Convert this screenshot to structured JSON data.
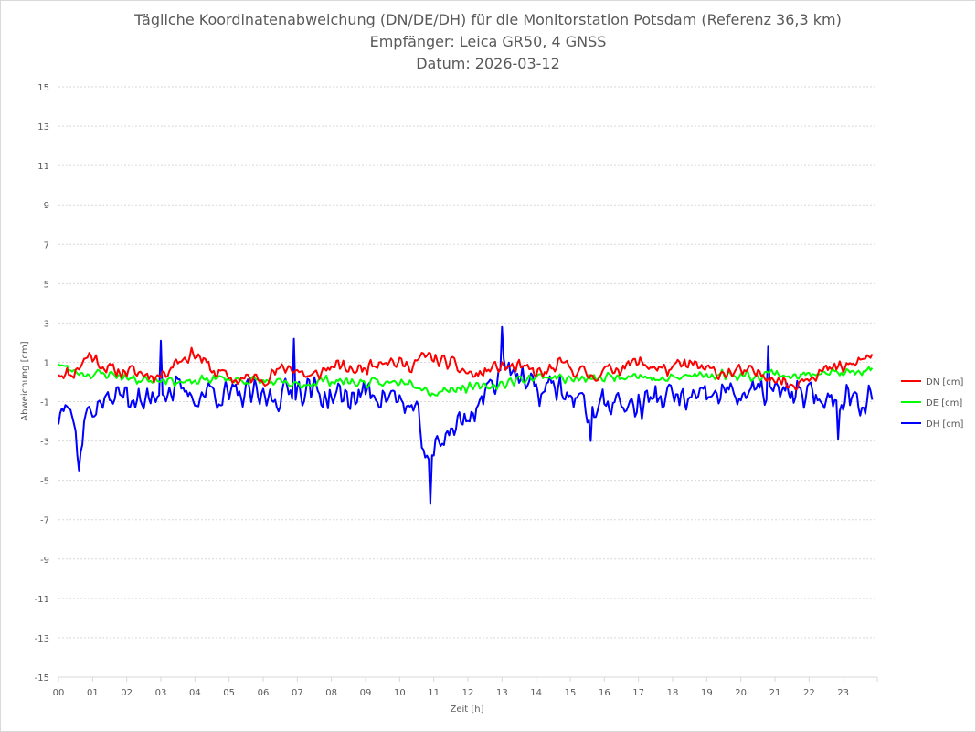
{
  "chart_data": {
    "type": "line",
    "title": [
      "Tägliche Koordinatenabweichung (DN/DE/DH) für die Monitorstation Potsdam (Referenz 36,3 km)",
      "Empfänger: Leica GR50, 4 GNSS",
      "Datum: 2026-03-12"
    ],
    "xlabel": "Zeit [h]",
    "ylabel": "Abweichung [cm]",
    "xlim": [
      0,
      24
    ],
    "ylim": [
      -15,
      15
    ],
    "x_ticks": [
      "00",
      "01",
      "02",
      "03",
      "04",
      "05",
      "06",
      "07",
      "08",
      "09",
      "10",
      "11",
      "12",
      "13",
      "14",
      "15",
      "16",
      "17",
      "18",
      "19",
      "20",
      "21",
      "22",
      "23"
    ],
    "y_ticks": [
      "15",
      "13",
      "11",
      "9",
      "7",
      "5",
      "3",
      "1",
      "-1",
      "-3",
      "-5",
      "-7",
      "-9",
      "-11",
      "-13",
      "-15"
    ],
    "y_tick_values": [
      15,
      13,
      11,
      9,
      7,
      5,
      3,
      1,
      -1,
      -3,
      -5,
      -7,
      -9,
      -11,
      -13,
      -15
    ],
    "grid": true,
    "legend_position": "right",
    "sampling_interval_h": 0.05,
    "series": [
      {
        "name": "DN [cm]",
        "color": "#ff0000",
        "keypoints": [
          [
            0,
            0.5
          ],
          [
            0.4,
            0.4
          ],
          [
            0.9,
            1.4
          ],
          [
            1.5,
            0.6
          ],
          [
            2.2,
            0.5
          ],
          [
            3.0,
            0.3
          ],
          [
            3.4,
            1.0
          ],
          [
            4.0,
            1.5
          ],
          [
            4.5,
            0.6
          ],
          [
            5.2,
            0.1
          ],
          [
            6.0,
            0.2
          ],
          [
            6.8,
            0.8
          ],
          [
            7.4,
            0.2
          ],
          [
            8.0,
            0.8
          ],
          [
            8.8,
            0.6
          ],
          [
            9.5,
            1.2
          ],
          [
            10.2,
            0.8
          ],
          [
            10.8,
            1.3
          ],
          [
            11.5,
            0.9
          ],
          [
            12.2,
            0.3
          ],
          [
            12.9,
            0.8
          ],
          [
            13.5,
            0.7
          ],
          [
            14.2,
            0.4
          ],
          [
            14.8,
            0.9
          ],
          [
            15.6,
            0.3
          ],
          [
            16.3,
            0.7
          ],
          [
            17.0,
            1.0
          ],
          [
            17.8,
            0.6
          ],
          [
            18.5,
            0.9
          ],
          [
            19.2,
            0.5
          ],
          [
            20.0,
            0.5
          ],
          [
            20.8,
            0.4
          ],
          [
            21.5,
            -0.2
          ],
          [
            22.0,
            0.4
          ],
          [
            22.6,
            0.6
          ],
          [
            23.2,
            0.8
          ],
          [
            23.85,
            1.4
          ]
        ],
        "noise": 0.45,
        "seed": 11
      },
      {
        "name": "DE [cm]",
        "color": "#00ff00",
        "keypoints": [
          [
            0,
            1.0
          ],
          [
            0.3,
            0.6
          ],
          [
            0.9,
            0.4
          ],
          [
            1.6,
            0.4
          ],
          [
            2.3,
            0.1
          ],
          [
            3.0,
            0.2
          ],
          [
            3.8,
            -0.1
          ],
          [
            4.5,
            0.2
          ],
          [
            5.3,
            0.1
          ],
          [
            6.2,
            0.0
          ],
          [
            7.0,
            -0.2
          ],
          [
            7.8,
            0.1
          ],
          [
            8.6,
            0.0
          ],
          [
            9.5,
            -0.1
          ],
          [
            10.3,
            0.1
          ],
          [
            11.0,
            -0.6
          ],
          [
            11.5,
            -0.3
          ],
          [
            12.3,
            -0.3
          ],
          [
            13.0,
            -0.1
          ],
          [
            13.7,
            0.2
          ],
          [
            14.4,
            0.3
          ],
          [
            15.2,
            0.1
          ],
          [
            16.0,
            0.2
          ],
          [
            16.8,
            0.4
          ],
          [
            17.6,
            0.1
          ],
          [
            18.5,
            0.3
          ],
          [
            19.5,
            0.4
          ],
          [
            20.3,
            0.3
          ],
          [
            21.0,
            0.5
          ],
          [
            21.6,
            0.2
          ],
          [
            22.3,
            0.6
          ],
          [
            23.0,
            0.4
          ],
          [
            23.85,
            0.6
          ]
        ],
        "noise": 0.3,
        "seed": 23
      },
      {
        "name": "DH [cm]",
        "color": "#0000ff",
        "keypoints": [
          [
            0,
            -1.9
          ],
          [
            0.2,
            -0.3
          ],
          [
            0.4,
            -1.6
          ],
          [
            0.6,
            -3.9
          ],
          [
            0.8,
            -1.7
          ],
          [
            1.0,
            -1.3
          ],
          [
            1.5,
            -0.9
          ],
          [
            2.0,
            -0.5
          ],
          [
            2.5,
            -1.2
          ],
          [
            3.0,
            -0.3
          ],
          [
            3.5,
            -0.5
          ],
          [
            4.0,
            -0.8
          ],
          [
            4.5,
            -0.4
          ],
          [
            5.0,
            -0.8
          ],
          [
            5.5,
            -0.6
          ],
          [
            6.0,
            -0.9
          ],
          [
            6.6,
            -0.6
          ],
          [
            7.2,
            -0.3
          ],
          [
            7.8,
            -0.7
          ],
          [
            8.5,
            -0.8
          ],
          [
            9.2,
            -0.5
          ],
          [
            9.8,
            -0.8
          ],
          [
            10.3,
            -1.3
          ],
          [
            10.6,
            -2.2
          ],
          [
            10.85,
            -4.5
          ],
          [
            11.1,
            -3.0
          ],
          [
            11.5,
            -2.4
          ],
          [
            12.0,
            -1.8
          ],
          [
            12.5,
            -0.7
          ],
          [
            12.9,
            0.5
          ],
          [
            13.2,
            1.2
          ],
          [
            13.5,
            0.1
          ],
          [
            14.0,
            -0.5
          ],
          [
            14.5,
            -0.2
          ],
          [
            15.0,
            -0.7
          ],
          [
            15.6,
            -1.5
          ],
          [
            16.2,
            -0.9
          ],
          [
            16.8,
            -1.3
          ],
          [
            17.5,
            -0.8
          ],
          [
            18.2,
            -0.8
          ],
          [
            18.8,
            -1.0
          ],
          [
            19.5,
            -0.5
          ],
          [
            20.1,
            -0.6
          ],
          [
            20.7,
            -0.5
          ],
          [
            21.2,
            -0.6
          ],
          [
            21.8,
            -0.7
          ],
          [
            22.3,
            -0.8
          ],
          [
            22.8,
            -1.0
          ],
          [
            23.2,
            -0.6
          ],
          [
            23.5,
            -0.9
          ],
          [
            23.85,
            -0.6
          ]
        ],
        "noise": 0.95,
        "seed": 37,
        "spikes": [
          [
            0.6,
            -4.5
          ],
          [
            3.0,
            2.1
          ],
          [
            6.9,
            2.2
          ],
          [
            10.9,
            -6.2
          ],
          [
            13.0,
            2.8
          ],
          [
            15.6,
            -3.0
          ],
          [
            20.8,
            1.8
          ],
          [
            22.85,
            -2.9
          ]
        ]
      }
    ]
  }
}
